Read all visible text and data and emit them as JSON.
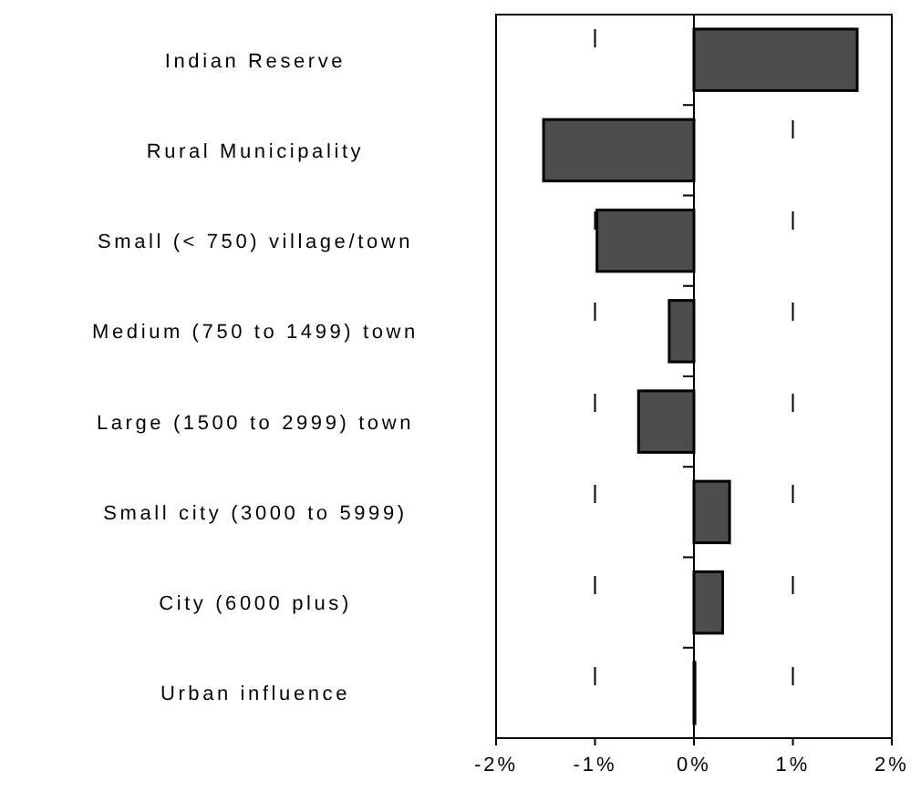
{
  "chart_data": {
    "type": "bar",
    "orientation": "horizontal",
    "categories": [
      "Indian Reserve",
      "Rural Municipality",
      "Small (< 750) village/town",
      "Medium (750 to 1499) town",
      "Large (1500 to 2999) town",
      "Small city (3000 to 5999)",
      "City (6000 plus)",
      "Urban influence"
    ],
    "values": [
      1.65,
      -1.52,
      -0.98,
      -0.25,
      -0.56,
      0.36,
      0.29,
      0.01
    ],
    "color": "#4d4d4d",
    "xlim": [
      -2,
      2
    ],
    "xticks": [
      {
        "value": -2,
        "label": "-2%"
      },
      {
        "value": -1,
        "label": "-1%"
      },
      {
        "value": 0,
        "label": "0%"
      },
      {
        "value": 1,
        "label": "1%"
      },
      {
        "value": 2,
        "label": "2%"
      }
    ],
    "grid": "x"
  }
}
